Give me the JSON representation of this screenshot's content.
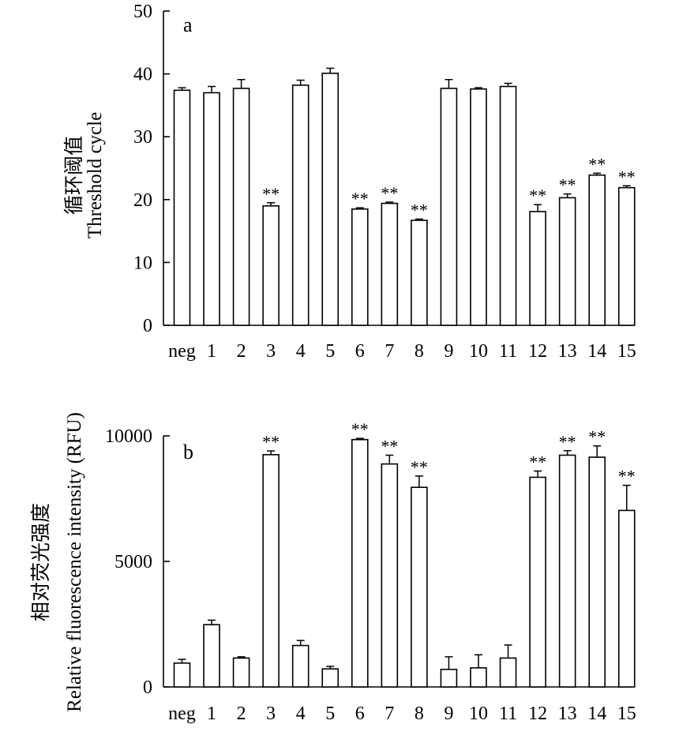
{
  "chart_data": [
    {
      "type": "bar",
      "panel_label": "a",
      "ylabel_cn": "循环阈值",
      "ylabel": "Threshold cycle",
      "xlabel": "",
      "categories": [
        "neg",
        "1",
        "2",
        "3",
        "4",
        "5",
        "6",
        "7",
        "8",
        "9",
        "10",
        "11",
        "12",
        "13",
        "14",
        "15"
      ],
      "values": [
        37.4,
        37.0,
        37.7,
        19.0,
        38.2,
        40.1,
        18.5,
        19.4,
        16.7,
        37.7,
        37.6,
        38.0,
        18.1,
        20.3,
        23.9,
        21.9
      ],
      "errors": [
        0.4,
        1.0,
        1.4,
        0.5,
        0.8,
        0.8,
        0.2,
        0.2,
        0.2,
        1.4,
        0.2,
        0.5,
        1.1,
        0.6,
        0.3,
        0.3
      ],
      "significance": [
        "",
        "",
        "",
        "**",
        "",
        "",
        "**",
        "**",
        "**",
        "",
        "",
        "",
        "**",
        "**",
        "**",
        "**"
      ],
      "ylim": [
        0,
        50
      ],
      "yticks": [
        "0",
        "10",
        "20",
        "30",
        "40",
        "50"
      ],
      "grid": false,
      "legend": "none"
    },
    {
      "type": "bar",
      "panel_label": "b",
      "ylabel_cn": "相对荧光强度",
      "ylabel": "Relative fluorescence intensity (RFU)",
      "xlabel": "",
      "categories": [
        "neg",
        "1",
        "2",
        "3",
        "4",
        "5",
        "6",
        "7",
        "8",
        "9",
        "10",
        "11",
        "12",
        "13",
        "14",
        "15"
      ],
      "values": [
        950,
        2480,
        1150,
        9250,
        1650,
        720,
        9850,
        8880,
        7950,
        700,
        760,
        1150,
        8350,
        9230,
        9150,
        7030
      ],
      "errors": [
        150,
        180,
        50,
        150,
        200,
        100,
        50,
        350,
        450,
        500,
        520,
        520,
        250,
        180,
        450,
        1000
      ],
      "significance": [
        "",
        "",
        "",
        "**",
        "",
        "",
        "**",
        "**",
        "**",
        "",
        "",
        "",
        "**",
        "**",
        "**",
        "**"
      ],
      "ylim": [
        0,
        10000
      ],
      "yticks": [
        "0",
        "5000",
        "10000"
      ],
      "grid": false,
      "legend": "none"
    }
  ]
}
